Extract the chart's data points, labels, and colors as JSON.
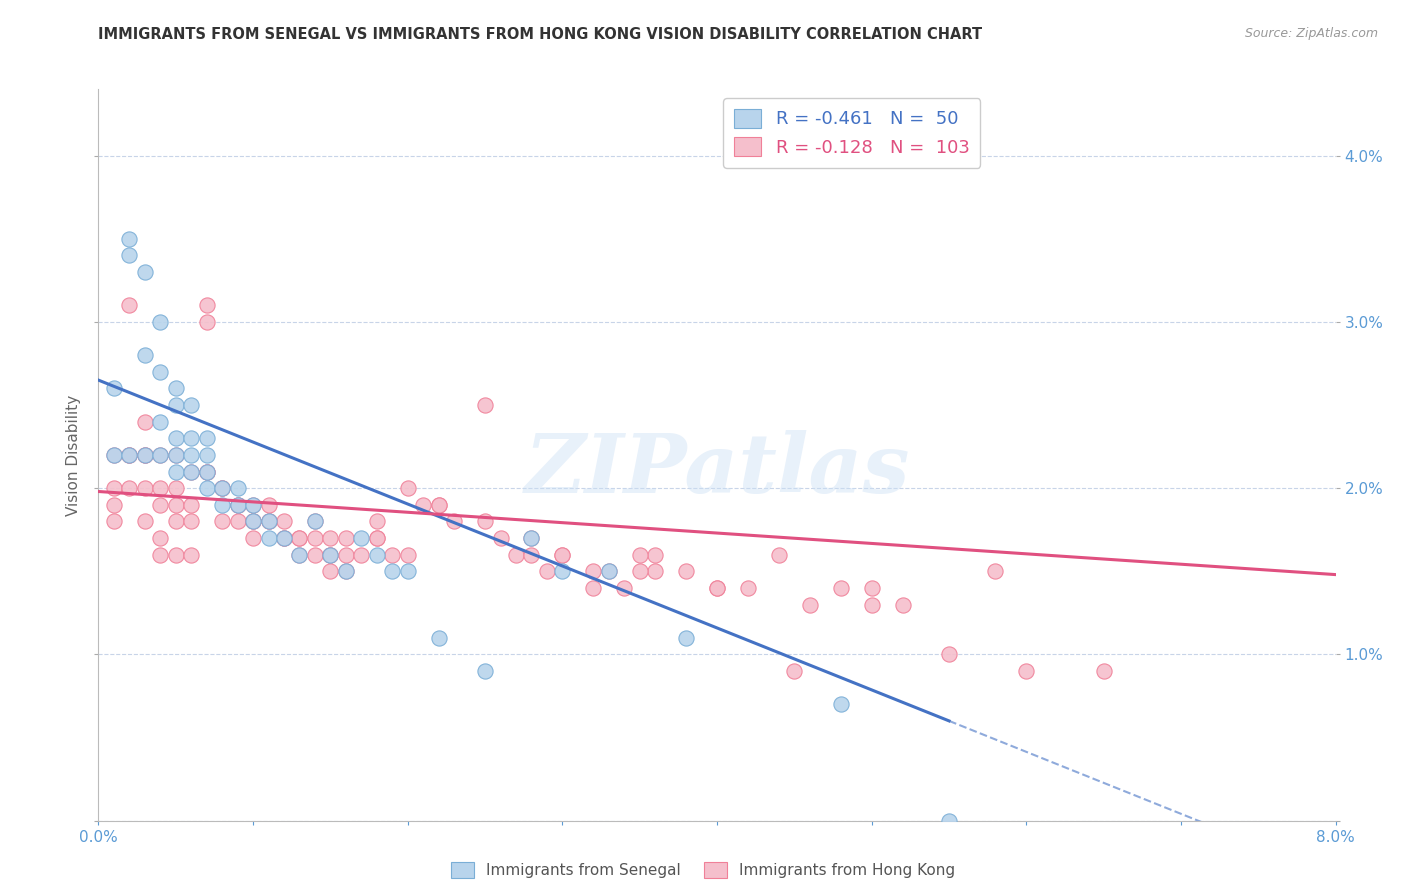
{
  "title": "IMMIGRANTS FROM SENEGAL VS IMMIGRANTS FROM HONG KONG VISION DISABILITY CORRELATION CHART",
  "source": "Source: ZipAtlas.com",
  "xlabel_senegal": "Immigrants from Senegal",
  "xlabel_hongkong": "Immigrants from Hong Kong",
  "ylabel": "Vision Disability",
  "xlim": [
    0.0,
    0.08
  ],
  "ylim": [
    0.0,
    0.044
  ],
  "xticks": [
    0.0,
    0.01,
    0.02,
    0.03,
    0.04,
    0.05,
    0.06,
    0.07,
    0.08
  ],
  "yticks": [
    0.0,
    0.01,
    0.02,
    0.03,
    0.04
  ],
  "color_senegal": "#b8d4ec",
  "color_hongkong": "#f5bfcc",
  "color_senegal_edge": "#7aaed6",
  "color_hongkong_edge": "#f08098",
  "color_senegal_line": "#4472c4",
  "color_hongkong_line": "#e05080",
  "color_senegal_text": "#4472c4",
  "color_hongkong_text": "#e05080",
  "R_senegal": -0.461,
  "N_senegal": 50,
  "R_hongkong": -0.128,
  "N_hongkong": 103,
  "background_color": "#ffffff",
  "grid_color": "#c8d4e8",
  "watermark": "ZIPatlas",
  "senegal_line_x0": 0.0,
  "senegal_line_y0": 0.0265,
  "senegal_line_x1": 0.055,
  "senegal_line_y1": 0.006,
  "hongkong_line_x0": 0.0,
  "hongkong_line_y0": 0.0198,
  "hongkong_line_x1": 0.08,
  "hongkong_line_y1": 0.0148,
  "senegal_x": [
    0.001,
    0.002,
    0.002,
    0.003,
    0.003,
    0.004,
    0.004,
    0.004,
    0.005,
    0.005,
    0.005,
    0.005,
    0.006,
    0.006,
    0.006,
    0.007,
    0.007,
    0.007,
    0.008,
    0.008,
    0.009,
    0.009,
    0.01,
    0.01,
    0.011,
    0.011,
    0.012,
    0.013,
    0.014,
    0.015,
    0.016,
    0.017,
    0.018,
    0.019,
    0.02,
    0.022,
    0.025,
    0.028,
    0.03,
    0.033,
    0.001,
    0.002,
    0.003,
    0.004,
    0.005,
    0.006,
    0.007,
    0.038,
    0.048,
    0.055
  ],
  "senegal_y": [
    0.026,
    0.035,
    0.034,
    0.033,
    0.028,
    0.03,
    0.027,
    0.024,
    0.026,
    0.025,
    0.023,
    0.021,
    0.025,
    0.023,
    0.021,
    0.023,
    0.022,
    0.02,
    0.02,
    0.019,
    0.02,
    0.019,
    0.019,
    0.018,
    0.018,
    0.017,
    0.017,
    0.016,
    0.018,
    0.016,
    0.015,
    0.017,
    0.016,
    0.015,
    0.015,
    0.011,
    0.009,
    0.017,
    0.015,
    0.015,
    0.022,
    0.022,
    0.022,
    0.022,
    0.022,
    0.022,
    0.021,
    0.011,
    0.007,
    0.0
  ],
  "hongkong_x": [
    0.001,
    0.001,
    0.001,
    0.002,
    0.002,
    0.002,
    0.003,
    0.003,
    0.003,
    0.003,
    0.004,
    0.004,
    0.004,
    0.004,
    0.005,
    0.005,
    0.005,
    0.005,
    0.006,
    0.006,
    0.006,
    0.007,
    0.007,
    0.007,
    0.008,
    0.008,
    0.009,
    0.009,
    0.01,
    0.01,
    0.01,
    0.011,
    0.011,
    0.012,
    0.012,
    0.013,
    0.013,
    0.014,
    0.014,
    0.015,
    0.015,
    0.015,
    0.016,
    0.016,
    0.017,
    0.018,
    0.018,
    0.019,
    0.02,
    0.021,
    0.022,
    0.023,
    0.025,
    0.026,
    0.027,
    0.028,
    0.03,
    0.032,
    0.034,
    0.036,
    0.038,
    0.04,
    0.042,
    0.044,
    0.001,
    0.002,
    0.003,
    0.004,
    0.005,
    0.006,
    0.007,
    0.008,
    0.009,
    0.01,
    0.011,
    0.012,
    0.013,
    0.014,
    0.015,
    0.016,
    0.018,
    0.02,
    0.022,
    0.025,
    0.028,
    0.03,
    0.033,
    0.036,
    0.04,
    0.046,
    0.052,
    0.058,
    0.06,
    0.065,
    0.055,
    0.045,
    0.05,
    0.05,
    0.048,
    0.035,
    0.035,
    0.032,
    0.029
  ],
  "hongkong_y": [
    0.02,
    0.019,
    0.018,
    0.031,
    0.022,
    0.02,
    0.024,
    0.022,
    0.02,
    0.018,
    0.02,
    0.019,
    0.017,
    0.016,
    0.02,
    0.019,
    0.018,
    0.016,
    0.019,
    0.018,
    0.016,
    0.031,
    0.03,
    0.021,
    0.02,
    0.018,
    0.019,
    0.018,
    0.019,
    0.018,
    0.017,
    0.019,
    0.018,
    0.018,
    0.017,
    0.017,
    0.016,
    0.018,
    0.017,
    0.017,
    0.016,
    0.015,
    0.017,
    0.016,
    0.016,
    0.018,
    0.017,
    0.016,
    0.02,
    0.019,
    0.019,
    0.018,
    0.025,
    0.017,
    0.016,
    0.016,
    0.016,
    0.015,
    0.014,
    0.016,
    0.015,
    0.014,
    0.014,
    0.016,
    0.022,
    0.022,
    0.022,
    0.022,
    0.022,
    0.021,
    0.021,
    0.02,
    0.019,
    0.018,
    0.018,
    0.017,
    0.017,
    0.016,
    0.016,
    0.015,
    0.017,
    0.016,
    0.019,
    0.018,
    0.017,
    0.016,
    0.015,
    0.015,
    0.014,
    0.013,
    0.013,
    0.015,
    0.009,
    0.009,
    0.01,
    0.009,
    0.014,
    0.013,
    0.014,
    0.016,
    0.015,
    0.014,
    0.015
  ]
}
